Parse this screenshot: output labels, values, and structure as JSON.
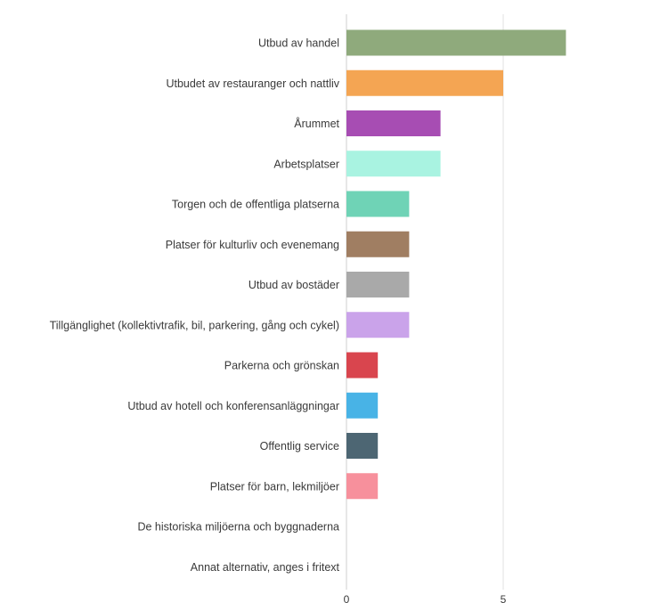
{
  "chart_data": {
    "type": "bar",
    "orientation": "horizontal",
    "categories": [
      "Utbud av handel",
      "Utbudet av restauranger och nattliv",
      "Årummet",
      "Arbetsplatser",
      "Torgen och de offentliga platserna",
      "Platser för kulturliv och evenemang",
      "Utbud av bostäder",
      "Tillgänglighet (kollektivtrafik, bil, parkering, gång och cykel)",
      "Parkerna och grönskan",
      "Utbud av hotell och konferensanläggningar",
      "Offentlig service",
      "Platser för barn, lekmiljöer",
      "De historiska miljöerna och byggnaderna",
      "Annat alternativ, anges i fritext"
    ],
    "values": [
      7,
      5,
      3,
      3,
      2,
      2,
      2,
      2,
      1,
      1,
      1,
      1,
      0,
      0
    ],
    "colors": [
      "#8faa7c",
      "#f4a553",
      "#a74db3",
      "#a9f3e1",
      "#6fd3b6",
      "#a07e62",
      "#a9a9a9",
      "#caa3ea",
      "#d9454e",
      "#48b3e6",
      "#4d6673",
      "#f7909c",
      "#cccccc",
      "#cccccc"
    ],
    "xlim": [
      0,
      8
    ],
    "xticks": [
      0,
      5
    ],
    "tick_labels": [
      "0",
      "5"
    ],
    "grid": true,
    "legend": "none",
    "title": "",
    "xlabel": "",
    "ylabel": ""
  }
}
